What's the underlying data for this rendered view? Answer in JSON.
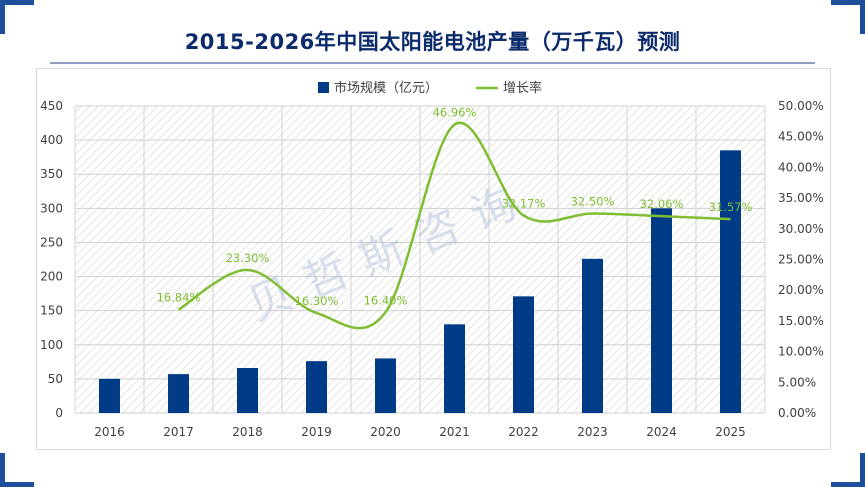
{
  "title": "2015-2026年中国太阳能电池产量（万千瓦）预测",
  "watermark": "贝哲斯咨询",
  "colors": {
    "bar": "#003b87",
    "line": "#7fbd32",
    "title": "#0b2b6b",
    "accent": "#1f4e9b"
  },
  "chart_data": {
    "type": "bar",
    "categories": [
      "2016",
      "2017",
      "2018",
      "2019",
      "2020",
      "2021",
      "2022",
      "2023",
      "2024",
      "2025"
    ],
    "series": [
      {
        "name": "市场规模（亿元）",
        "type": "bar",
        "axis": "left",
        "values": [
          50,
          57,
          66,
          76,
          80,
          130,
          171,
          226,
          300,
          385
        ]
      },
      {
        "name": "增长率",
        "type": "line",
        "axis": "right",
        "smooth": true,
        "values": [
          null,
          16.84,
          23.3,
          16.3,
          16.4,
          46.96,
          32.17,
          32.5,
          32.06,
          31.57
        ],
        "labels": [
          null,
          "16.84%",
          "23.30%",
          "16.30%",
          "16.40%",
          "46.96%",
          "32.17%",
          "32.50%",
          "32.06%",
          "31.57%"
        ]
      }
    ],
    "y_left": {
      "lim": [
        0,
        450
      ],
      "ticks": [
        "0",
        "50",
        "100",
        "150",
        "200",
        "250",
        "300",
        "350",
        "400",
        "450"
      ]
    },
    "y_right": {
      "lim": [
        0,
        50
      ],
      "ticks": [
        "0.00%",
        "5.00%",
        "10.00%",
        "15.00%",
        "20.00%",
        "25.00%",
        "30.00%",
        "35.00%",
        "40.00%",
        "45.00%",
        "50.00%"
      ]
    },
    "legend": {
      "position": "top"
    },
    "grid": true
  }
}
